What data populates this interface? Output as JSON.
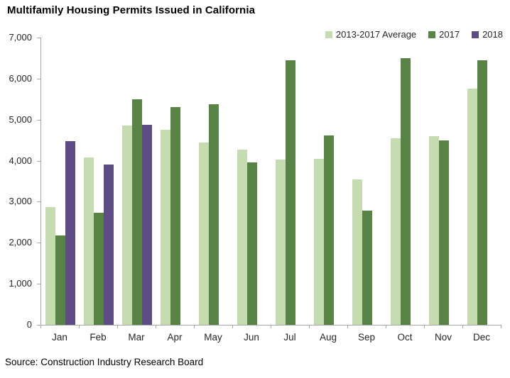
{
  "title": "Multifamily Housing Permits Issued in California",
  "source": "Source: Construction Industry Research Board",
  "chart_data": {
    "type": "bar",
    "title": "Multifamily Housing Permits Issued in California",
    "xlabel": "",
    "ylabel": "",
    "ylim": [
      0,
      7000
    ],
    "y_tick_step": 1000,
    "y_ticks": [
      "0",
      "1,000",
      "2,000",
      "3,000",
      "4,000",
      "5,000",
      "6,000",
      "7,000"
    ],
    "grid": false,
    "legend_position": "top-right",
    "categories": [
      "Jan",
      "Feb",
      "Mar",
      "Apr",
      "May",
      "Jun",
      "Jul",
      "Aug",
      "Sep",
      "Oct",
      "Nov",
      "Dec"
    ],
    "series": [
      {
        "name": "2013-2017 Average",
        "color": "#c4dcb0",
        "values": [
          2870,
          4080,
          4860,
          4760,
          4440,
          4270,
          4020,
          4040,
          3550,
          4540,
          4590,
          5750
        ]
      },
      {
        "name": "2017",
        "color": "#578444",
        "values": [
          2180,
          2740,
          5500,
          5310,
          5380,
          3960,
          6440,
          4620,
          2780,
          6500,
          4500,
          6450
        ]
      },
      {
        "name": "2018",
        "color": "#5e4c85",
        "values": [
          4480,
          3910,
          4880,
          null,
          null,
          null,
          null,
          null,
          null,
          null,
          null,
          null
        ]
      }
    ]
  }
}
